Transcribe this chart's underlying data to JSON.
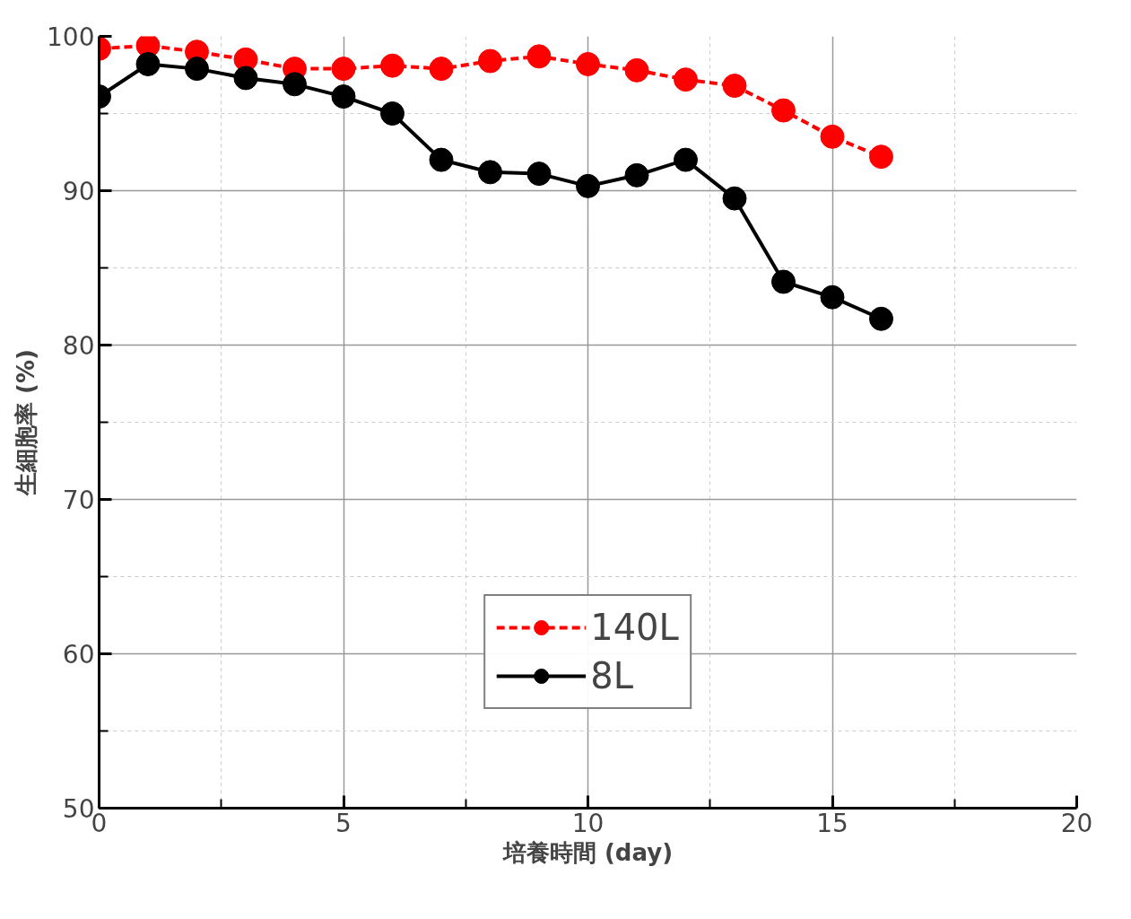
{
  "chart_data": {
    "type": "line",
    "xlabel": "培養時間 (day)",
    "ylabel": "生細胞率 (%)",
    "x": [
      0,
      1,
      2,
      3,
      4,
      5,
      6,
      7,
      8,
      9,
      10,
      11,
      12,
      13,
      14,
      15,
      16
    ],
    "series": [
      {
        "name": "140L",
        "color": "#ff0000",
        "line_style": "dashed",
        "values": [
          99.2,
          99.4,
          99.0,
          98.5,
          97.9,
          97.9,
          98.1,
          97.9,
          98.4,
          98.7,
          98.2,
          97.8,
          97.2,
          96.8,
          95.2,
          93.5,
          92.2
        ]
      },
      {
        "name": "8L",
        "color": "#000000",
        "line_style": "solid",
        "values": [
          96.1,
          98.2,
          97.9,
          97.3,
          96.9,
          96.1,
          95.0,
          92.0,
          91.2,
          91.1,
          90.3,
          91.0,
          92.0,
          89.5,
          84.1,
          83.1,
          81.7
        ]
      }
    ],
    "marker": "circle",
    "xlim": [
      0,
      20
    ],
    "ylim": [
      50,
      100
    ],
    "xticks": [
      0,
      {
        "value": 2.5,
        "label": null
      },
      5,
      {
        "value": 7.5,
        "label": null
      },
      10,
      {
        "value": 12.5,
        "label": null
      },
      15,
      {
        "value": 17.5,
        "label": null
      },
      20
    ],
    "yticks": [
      50,
      {
        "value": 55,
        "label": null
      },
      60,
      {
        "value": 65,
        "label": null
      },
      70,
      {
        "value": 75,
        "label": null
      },
      80,
      {
        "value": 85,
        "label": null
      },
      90,
      {
        "value": 95,
        "label": null
      },
      100
    ],
    "grid": true,
    "legend": "bottom"
  }
}
